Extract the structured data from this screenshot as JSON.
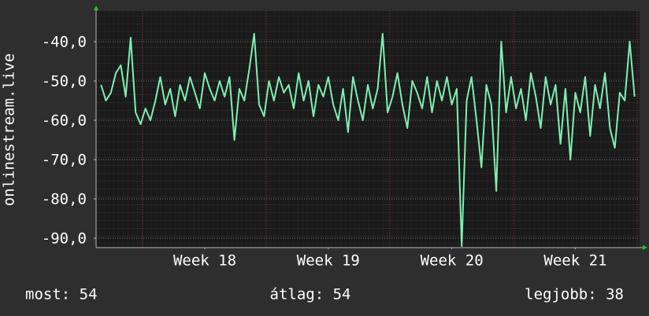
{
  "chart_data": {
    "type": "line",
    "y_label": "onlinestream.live",
    "x": [
      17.66,
      17.7,
      17.74,
      17.78,
      17.82,
      17.86,
      17.9,
      17.94,
      17.98,
      18.02,
      18.06,
      18.1,
      18.14,
      18.18,
      18.22,
      18.26,
      18.3,
      18.34,
      18.38,
      18.42,
      18.46,
      18.5,
      18.54,
      18.58,
      18.62,
      18.66,
      18.7,
      18.74,
      18.78,
      18.82,
      18.86,
      18.9,
      18.94,
      18.98,
      19.02,
      19.06,
      19.1,
      19.14,
      19.18,
      19.22,
      19.26,
      19.3,
      19.34,
      19.38,
      19.42,
      19.46,
      19.5,
      19.54,
      19.58,
      19.62,
      19.66,
      19.7,
      19.74,
      19.78,
      19.82,
      19.86,
      19.9,
      19.94,
      19.98,
      20.02,
      20.06,
      20.1,
      20.14,
      20.18,
      20.22,
      20.26,
      20.3,
      20.34,
      20.38,
      20.42,
      20.46,
      20.5,
      20.54,
      20.58,
      20.62,
      20.66,
      20.7,
      20.74,
      20.78,
      20.82,
      20.86,
      20.9,
      20.94,
      20.98,
      21.02,
      21.06,
      21.1,
      21.14,
      21.18,
      21.22,
      21.26,
      21.3,
      21.34,
      21.38,
      21.42,
      21.46,
      21.5,
      21.54,
      21.58,
      21.62,
      21.66,
      21.7,
      21.74,
      21.78,
      21.82,
      21.86,
      21.9,
      21.94,
      21.98
    ],
    "series": [
      {
        "name": "onlinestream.live",
        "color": "#7ff0b2",
        "values": [
          -51,
          -55,
          -53,
          -48,
          -46,
          -54,
          -39,
          -58,
          -61,
          -57,
          -60,
          -55,
          -49,
          -56,
          -52,
          -59,
          -51,
          -55,
          -49,
          -53,
          -57,
          -48,
          -52,
          -55,
          -50,
          -54,
          -49,
          -65,
          -52,
          -55,
          -47,
          -38,
          -56,
          -59,
          -50,
          -55,
          -49,
          -53,
          -51,
          -57,
          -48,
          -55,
          -50,
          -59,
          -51,
          -54,
          -49,
          -56,
          -60,
          -52,
          -63,
          -49,
          -55,
          -60,
          -51,
          -57,
          -52,
          -38,
          -58,
          -54,
          -48,
          -56,
          -62,
          -50,
          -53,
          -57,
          -49,
          -58,
          -50,
          -55,
          -49,
          -56,
          -52,
          -92,
          -55,
          -49,
          -60,
          -72,
          -51,
          -56,
          -78,
          -40,
          -58,
          -49,
          -57,
          -52,
          -60,
          -48,
          -54,
          -62,
          -49,
          -56,
          -51,
          -66,
          -52,
          -70,
          -53,
          -58,
          -49,
          -64,
          -51,
          -57,
          -48,
          -62,
          -67,
          -53,
          -55,
          -40,
          -54
        ]
      }
    ],
    "xlim": [
      17.62,
      22.02
    ],
    "xticks": [
      {
        "value": 18.5,
        "label": "Week 18"
      },
      {
        "value": 19.5,
        "label": "Week 19"
      },
      {
        "value": 20.5,
        "label": "Week 20"
      },
      {
        "value": 21.5,
        "label": "Week 21"
      }
    ],
    "ylim": [
      -92.4,
      -32.2
    ],
    "yticks": [
      {
        "value": -40,
        "label": "-40,0"
      },
      {
        "value": -50,
        "label": "-50,0"
      },
      {
        "value": -60,
        "label": "-60,0"
      },
      {
        "value": -70,
        "label": "-70,0"
      },
      {
        "value": -80,
        "label": "-80,0"
      },
      {
        "value": -90,
        "label": "-90,0"
      }
    ],
    "grid": true,
    "stats": [
      "most: 54",
      "átlag: 54",
      "legjobb: 38"
    ]
  }
}
